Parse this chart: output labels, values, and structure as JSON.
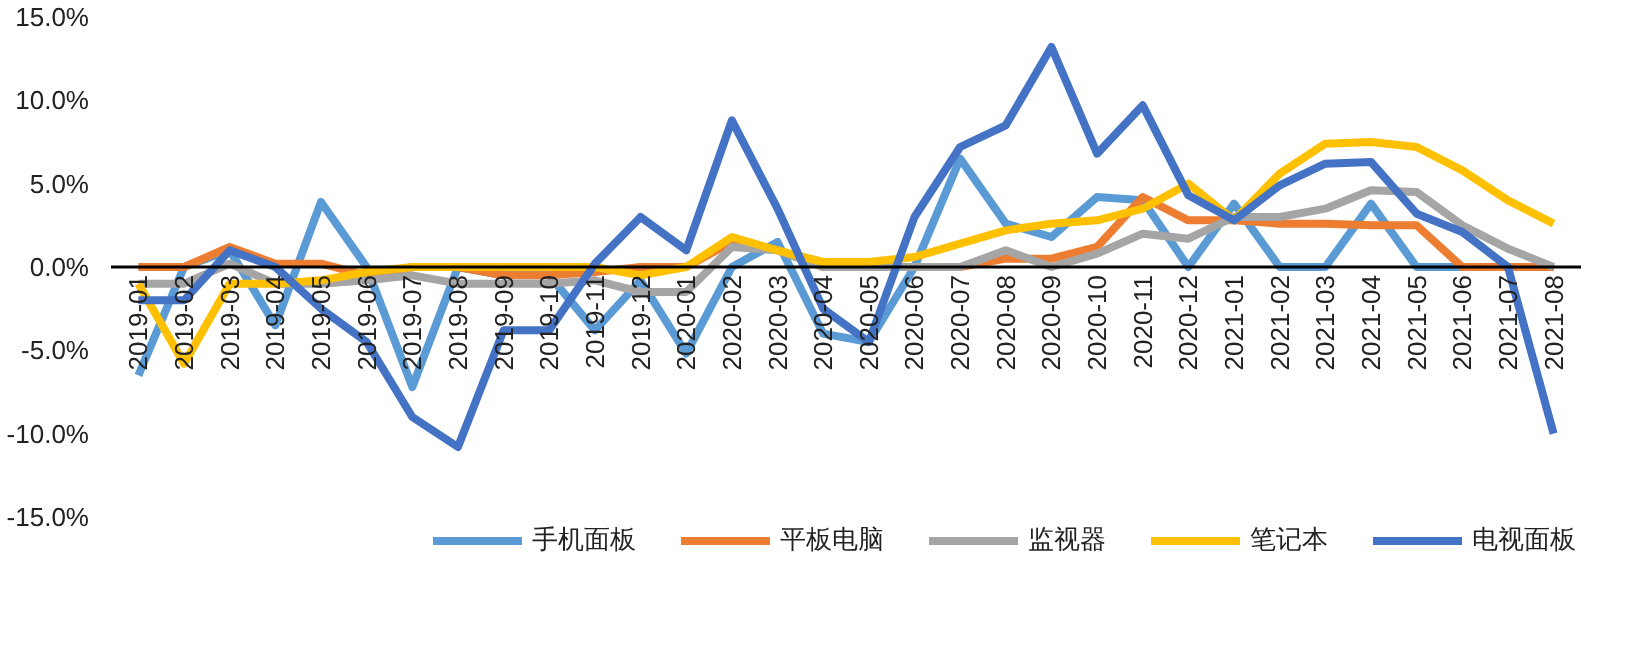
{
  "chart_data": {
    "type": "line",
    "categories": [
      "2019-01",
      "2019-02",
      "2019-03",
      "2019-04",
      "2019-05",
      "2019-06",
      "2019-07",
      "2019-08",
      "2019-09",
      "2019-10",
      "2019-11",
      "2019-12",
      "2020-01",
      "2020-02",
      "2020-03",
      "2020-04",
      "2020-05",
      "2020-06",
      "2020-07",
      "2020-08",
      "2020-09",
      "2020-10",
      "2020-11",
      "2020-12",
      "2021-01",
      "2021-02",
      "2021-03",
      "2021-04",
      "2021-05",
      "2021-06",
      "2021-07",
      "2021-08"
    ],
    "series": [
      {
        "name": "手机面板",
        "color": "#5b9bd5",
        "values": [
          -6.5,
          0,
          1,
          -3.5,
          3.9,
          0,
          -7.2,
          0,
          -0.5,
          -0.5,
          -3.8,
          -0.8,
          -5.2,
          0,
          1.5,
          -4,
          -4.5,
          0,
          6.5,
          2.6,
          1.8,
          4.2,
          4,
          0,
          3.8,
          0,
          0,
          3.8,
          0,
          0,
          0,
          0
        ]
      },
      {
        "name": "平板电脑",
        "color": "#ed7d31",
        "values": [
          0,
          0,
          1.2,
          0.2,
          0.2,
          -0.5,
          0,
          0,
          -0.5,
          -0.5,
          -0.3,
          0,
          0,
          1.5,
          1,
          0,
          0,
          0,
          0,
          0.5,
          0.5,
          1.2,
          4.2,
          2.8,
          2.8,
          2.6,
          2.6,
          2.5,
          2.5,
          0,
          0,
          0
        ]
      },
      {
        "name": "监视器",
        "color": "#a5a5a5",
        "values": [
          -1,
          -1,
          0.2,
          -1,
          -1,
          -0.8,
          -0.5,
          -1,
          -1,
          -1,
          -0.8,
          -1.5,
          -1.5,
          1.2,
          1,
          0,
          0,
          0,
          0,
          1,
          0,
          0.8,
          2,
          1.7,
          3,
          3,
          3.5,
          4.6,
          4.5,
          2.5,
          1.1,
          0
        ]
      },
      {
        "name": "笔记本",
        "color": "#ffc000",
        "values": [
          -1,
          -5.8,
          -1,
          -1,
          -0.8,
          -0.3,
          0,
          0,
          0,
          0,
          0,
          -0.5,
          0,
          1.8,
          1,
          0.3,
          0.3,
          0.6,
          1.4,
          2.2,
          2.6,
          2.8,
          3.5,
          5,
          2.8,
          5.6,
          7.4,
          7.5,
          7.2,
          5.8,
          4,
          2.6
        ]
      },
      {
        "name": "电视面板",
        "color": "#4472c4",
        "values": [
          -2,
          -2,
          1,
          0,
          -2.5,
          -4.5,
          -9,
          -10.8,
          -3.8,
          -3.8,
          0.2,
          3,
          1,
          8.8,
          3.5,
          -2.5,
          -4.5,
          3,
          7.2,
          8.5,
          13.2,
          6.8,
          9.7,
          4.3,
          2.8,
          4.9,
          6.2,
          6.3,
          3.2,
          2.1,
          0,
          -10
        ]
      }
    ],
    "ylim": [
      -15,
      15
    ],
    "yticks": [
      {
        "value": -15,
        "label": "-15.0%"
      },
      {
        "value": -10,
        "label": "-10.0%"
      },
      {
        "value": -5,
        "label": "-5.0%"
      },
      {
        "value": 0,
        "label": "0.0%"
      },
      {
        "value": 5,
        "label": "5.0%"
      },
      {
        "value": 10,
        "label": "10.0%"
      },
      {
        "value": 15,
        "label": "15.0%"
      }
    ],
    "grid": false,
    "legend": "bottom",
    "marker": "none",
    "line_style": "solid"
  }
}
